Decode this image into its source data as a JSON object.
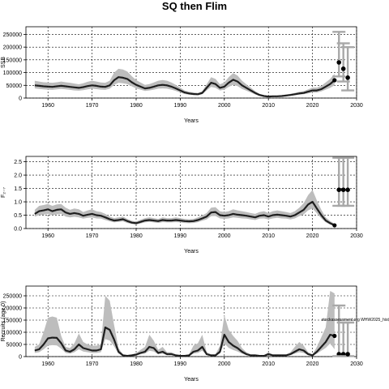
{
  "figure": {
    "title": "SQ then Flim"
  },
  "chart_data": [
    {
      "type": "line",
      "xlabel": "Years",
      "ylabel": "SSB",
      "xlim": [
        1955,
        2030
      ],
      "ylim": [
        0,
        280000
      ],
      "xticks": [
        1960,
        1970,
        1980,
        1990,
        2000,
        2010,
        2020,
        2030
      ],
      "yticks": [
        0,
        50000,
        100000,
        150000,
        200000,
        250000
      ],
      "ytick_labels": [
        "0",
        "50000",
        "100000",
        "150000",
        "200000",
        "250000"
      ],
      "grid": true,
      "series": [
        {
          "years": [
            1957,
            1958,
            1959,
            1960,
            1961,
            1962,
            1963,
            1964,
            1965,
            1966,
            1967,
            1968,
            1969,
            1970,
            1971,
            1972,
            1973,
            1974,
            1975,
            1976,
            1977,
            1978,
            1979,
            1980,
            1981,
            1982,
            1983,
            1984,
            1985,
            1986,
            1987,
            1988,
            1989,
            1990,
            1991,
            1992,
            1993,
            1994,
            1995,
            1996,
            1997,
            1998,
            1999,
            2000,
            2001,
            2002,
            2003,
            2004,
            2005,
            2006,
            2007,
            2008,
            2009,
            2010,
            2011,
            2012,
            2013,
            2014,
            2015,
            2016,
            2017,
            2018,
            2019,
            2020,
            2021,
            2022,
            2023,
            2024,
            2025
          ],
          "estimate": [
            50000,
            48000,
            46000,
            45000,
            44000,
            46000,
            48000,
            46000,
            44000,
            42000,
            40000,
            43000,
            47000,
            50000,
            48000,
            45000,
            44000,
            50000,
            70000,
            82000,
            80000,
            75000,
            62000,
            52000,
            45000,
            38000,
            40000,
            45000,
            50000,
            52000,
            50000,
            45000,
            38000,
            30000,
            22000,
            18000,
            16000,
            15000,
            20000,
            40000,
            60000,
            55000,
            40000,
            45000,
            60000,
            72000,
            65000,
            50000,
            40000,
            30000,
            20000,
            12000,
            8000,
            6000,
            7000,
            7000,
            8000,
            10000,
            12000,
            15000,
            18000,
            20000,
            25000,
            30000,
            30000,
            35000,
            45000,
            55000,
            70000
          ],
          "lower": [
            38000,
            36000,
            34000,
            33000,
            32000,
            34000,
            36000,
            34000,
            32000,
            30000,
            29000,
            31000,
            34000,
            37000,
            35000,
            33000,
            32000,
            37000,
            52000,
            60000,
            58000,
            55000,
            46000,
            38000,
            33000,
            28000,
            30000,
            33000,
            37000,
            38000,
            37000,
            33000,
            28000,
            22000,
            16000,
            13000,
            12000,
            11000,
            15000,
            30000,
            44000,
            40000,
            30000,
            33000,
            44000,
            52000,
            47000,
            36000,
            29000,
            22000,
            14000,
            9000,
            6000,
            4500,
            5000,
            5000,
            6000,
            7500,
            9000,
            11000,
            13000,
            15000,
            18000,
            22000,
            22000,
            26000,
            33000,
            40000,
            50000
          ],
          "upper": [
            68000,
            65000,
            62000,
            61000,
            60000,
            62000,
            65000,
            62000,
            60000,
            57000,
            54000,
            58000,
            64000,
            68000,
            65000,
            61000,
            60000,
            68000,
            100000,
            115000,
            112000,
            104000,
            86000,
            71000,
            61000,
            52000,
            55000,
            61000,
            68000,
            71000,
            68000,
            61000,
            52000,
            41000,
            30000,
            25000,
            22000,
            20500,
            27000,
            54000,
            82000,
            75000,
            54000,
            61000,
            82000,
            98000,
            88000,
            68000,
            54000,
            41000,
            27000,
            16500,
            11000,
            8200,
            9500,
            9500,
            11000,
            13500,
            16500,
            20500,
            24500,
            27000,
            34000,
            41000,
            41000,
            48000,
            61000,
            75000,
            95000
          ]
        }
      ],
      "projection": [
        {
          "year": 2026,
          "value": 140000,
          "low": 85000,
          "high": 260000
        },
        {
          "year": 2027,
          "value": 115000,
          "low": 65000,
          "high": 215000
        },
        {
          "year": 2028,
          "value": 80000,
          "low": 30000,
          "high": 200000
        }
      ]
    },
    {
      "type": "line",
      "xlabel": "Years",
      "ylabel": "F₂₋₇",
      "xlim": [
        1955,
        2030
      ],
      "ylim": [
        0,
        2.7
      ],
      "xticks": [
        1960,
        1970,
        1980,
        1990,
        2000,
        2010,
        2020,
        2030
      ],
      "yticks": [
        0,
        0.5,
        1.0,
        1.5,
        2.0,
        2.5
      ],
      "ytick_labels": [
        "0.0",
        "0.5",
        "1.0",
        "1.5",
        "2.0",
        "2.5"
      ],
      "grid": true,
      "series": [
        {
          "years": [
            1957,
            1958,
            1959,
            1960,
            1961,
            1962,
            1963,
            1964,
            1965,
            1966,
            1967,
            1968,
            1969,
            1970,
            1971,
            1972,
            1973,
            1974,
            1975,
            1976,
            1977,
            1978,
            1979,
            1980,
            1981,
            1982,
            1983,
            1984,
            1985,
            1986,
            1987,
            1988,
            1989,
            1990,
            1991,
            1992,
            1993,
            1994,
            1995,
            1996,
            1997,
            1998,
            1999,
            2000,
            2001,
            2002,
            2003,
            2004,
            2005,
            2006,
            2007,
            2008,
            2009,
            2010,
            2011,
            2012,
            2013,
            2014,
            2015,
            2016,
            2017,
            2018,
            2019,
            2020,
            2021,
            2022,
            2023,
            2024,
            2025
          ],
          "estimate": [
            0.55,
            0.65,
            0.68,
            0.72,
            0.65,
            0.7,
            0.72,
            0.6,
            0.55,
            0.58,
            0.55,
            0.48,
            0.52,
            0.55,
            0.5,
            0.48,
            0.42,
            0.35,
            0.3,
            0.32,
            0.35,
            0.28,
            0.22,
            0.2,
            0.25,
            0.3,
            0.32,
            0.3,
            0.28,
            0.32,
            0.3,
            0.3,
            0.32,
            0.3,
            0.28,
            0.27,
            0.28,
            0.32,
            0.38,
            0.45,
            0.6,
            0.62,
            0.5,
            0.48,
            0.5,
            0.55,
            0.52,
            0.5,
            0.48,
            0.45,
            0.42,
            0.48,
            0.5,
            0.45,
            0.5,
            0.52,
            0.5,
            0.48,
            0.45,
            0.5,
            0.6,
            0.7,
            0.9,
            1.0,
            0.75,
            0.5,
            0.3,
            0.2,
            0.12
          ],
          "lower": [
            0.45,
            0.5,
            0.52,
            0.55,
            0.5,
            0.53,
            0.55,
            0.45,
            0.42,
            0.44,
            0.42,
            0.37,
            0.4,
            0.42,
            0.38,
            0.37,
            0.32,
            0.27,
            0.23,
            0.25,
            0.27,
            0.21,
            0.17,
            0.15,
            0.19,
            0.23,
            0.25,
            0.23,
            0.21,
            0.24,
            0.23,
            0.23,
            0.24,
            0.23,
            0.21,
            0.2,
            0.21,
            0.24,
            0.29,
            0.34,
            0.46,
            0.47,
            0.38,
            0.36,
            0.38,
            0.42,
            0.4,
            0.38,
            0.37,
            0.34,
            0.32,
            0.37,
            0.38,
            0.34,
            0.38,
            0.4,
            0.38,
            0.37,
            0.34,
            0.38,
            0.46,
            0.53,
            0.68,
            0.75,
            0.57,
            0.38,
            0.23,
            0.15,
            0.09
          ],
          "upper": [
            0.7,
            0.85,
            0.88,
            0.92,
            0.85,
            0.9,
            0.92,
            0.78,
            0.7,
            0.75,
            0.72,
            0.62,
            0.68,
            0.72,
            0.65,
            0.62,
            0.55,
            0.45,
            0.39,
            0.42,
            0.45,
            0.36,
            0.29,
            0.26,
            0.33,
            0.39,
            0.42,
            0.39,
            0.36,
            0.42,
            0.39,
            0.39,
            0.42,
            0.39,
            0.36,
            0.35,
            0.36,
            0.42,
            0.49,
            0.58,
            0.78,
            0.8,
            0.65,
            0.62,
            0.65,
            0.72,
            0.68,
            0.65,
            0.62,
            0.58,
            0.55,
            0.62,
            0.65,
            0.58,
            0.65,
            0.68,
            0.65,
            0.62,
            0.58,
            0.65,
            0.78,
            0.95,
            1.25,
            1.45,
            1.05,
            0.7,
            0.42,
            0.28,
            0.18
          ]
        }
      ],
      "projection": [
        {
          "year": 2026,
          "value": 1.45,
          "low": 0.85,
          "high": 2.65
        },
        {
          "year": 2027,
          "value": 1.45,
          "low": 0.85,
          "high": 2.65
        },
        {
          "year": 2028,
          "value": 1.45,
          "low": 0.85,
          "high": 2.65
        }
      ]
    },
    {
      "type": "line",
      "xlabel": "Years",
      "ylabel": "Recruits (age 0)",
      "xlim": [
        1955,
        2030
      ],
      "ylim": [
        0,
        290000
      ],
      "xticks": [
        1960,
        1970,
        1980,
        1990,
        2000,
        2010,
        2020,
        2030
      ],
      "yticks": [
        0,
        50000,
        100000,
        150000,
        200000,
        250000
      ],
      "ytick_labels": [
        "0",
        "50000",
        "100000",
        "150000",
        "200000",
        "250000"
      ],
      "grid": true,
      "annotation": {
        "text": "stockassessment.org WHW2025_hist_and",
        "year": 2025,
        "value": 120000
      },
      "series": [
        {
          "years": [
            1957,
            1958,
            1959,
            1960,
            1961,
            1962,
            1963,
            1964,
            1965,
            1966,
            1967,
            1968,
            1969,
            1970,
            1971,
            1972,
            1973,
            1974,
            1975,
            1976,
            1977,
            1978,
            1979,
            1980,
            1981,
            1982,
            1983,
            1984,
            1985,
            1986,
            1987,
            1988,
            1989,
            1990,
            1991,
            1992,
            1993,
            1994,
            1995,
            1996,
            1997,
            1998,
            1999,
            2000,
            2001,
            2002,
            2003,
            2004,
            2005,
            2006,
            2007,
            2008,
            2009,
            2010,
            2011,
            2012,
            2013,
            2014,
            2015,
            2016,
            2017,
            2018,
            2019,
            2020,
            2021,
            2022,
            2023,
            2024,
            2025
          ],
          "estimate": [
            25000,
            30000,
            50000,
            75000,
            78000,
            77000,
            55000,
            25000,
            20000,
            30000,
            50000,
            35000,
            30000,
            25000,
            25000,
            30000,
            120000,
            110000,
            70000,
            20000,
            5000,
            3000,
            5000,
            8000,
            15000,
            20000,
            40000,
            35000,
            15000,
            20000,
            10000,
            10000,
            5000,
            3000,
            3000,
            5000,
            20000,
            25000,
            40000,
            10000,
            5000,
            5000,
            20000,
            90000,
            60000,
            45000,
            35000,
            20000,
            10000,
            5000,
            5000,
            3000,
            3000,
            10000,
            5000,
            5000,
            5000,
            5000,
            10000,
            20000,
            30000,
            25000,
            10000,
            5000,
            20000,
            40000,
            60000,
            90000,
            85000
          ],
          "lower": [
            15000,
            18000,
            30000,
            45000,
            47000,
            46000,
            33000,
            15000,
            12000,
            18000,
            30000,
            21000,
            18000,
            15000,
            15000,
            18000,
            72000,
            66000,
            42000,
            12000,
            3000,
            1800,
            3000,
            4800,
            9000,
            12000,
            24000,
            21000,
            9000,
            12000,
            6000,
            6000,
            3000,
            1800,
            1800,
            3000,
            12000,
            15000,
            24000,
            6000,
            3000,
            3000,
            12000,
            54000,
            36000,
            27000,
            21000,
            12000,
            6000,
            3000,
            3000,
            1800,
            1800,
            6000,
            3000,
            3000,
            3000,
            3000,
            6000,
            12000,
            18000,
            15000,
            6000,
            3000,
            12000,
            24000,
            36000,
            54000,
            30000
          ],
          "upper": [
            40000,
            50000,
            100000,
            160000,
            165000,
            160000,
            85000,
            40000,
            35000,
            55000,
            95000,
            60000,
            50000,
            45000,
            45000,
            50000,
            250000,
            230000,
            130000,
            35000,
            9000,
            6000,
            9000,
            14000,
            28000,
            40000,
            90000,
            65000,
            28000,
            40000,
            18000,
            18000,
            9000,
            6000,
            6000,
            9000,
            45000,
            55000,
            90000,
            18000,
            9000,
            9000,
            45000,
            170000,
            110000,
            85000,
            65000,
            35000,
            18000,
            9000,
            9000,
            6000,
            6000,
            18000,
            9000,
            9000,
            9000,
            9000,
            18000,
            40000,
            60000,
            45000,
            18000,
            9000,
            40000,
            80000,
            120000,
            270000,
            260000
          ]
        }
      ],
      "projection": [
        {
          "year": 2026,
          "value": 10000,
          "low": 2000,
          "high": 210000
        },
        {
          "year": 2027,
          "value": 10000,
          "low": 2000,
          "high": 140000
        },
        {
          "year": 2028,
          "value": 10000,
          "low": 2000,
          "high": 140000
        }
      ]
    }
  ]
}
